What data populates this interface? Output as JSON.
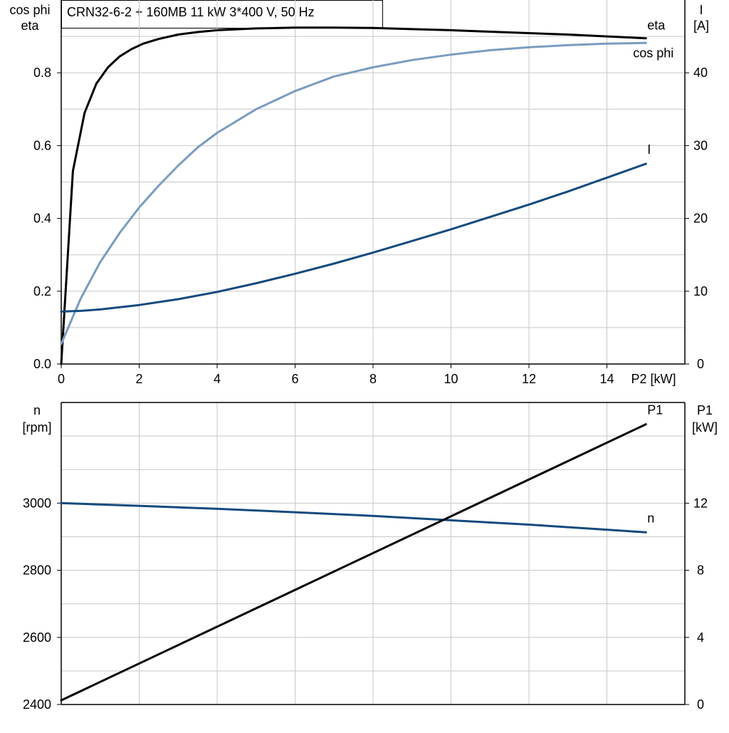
{
  "title": "CRN32-6-2 + 160MB   11 kW   3*400 V, 50 Hz",
  "colors": {
    "eta": "#000000",
    "cos_phi": "#7a9cbf",
    "current": "#144a7e",
    "speed": "#144a7e",
    "p1": "#000000",
    "grid": "#c8c8c8",
    "axis": "#000000"
  },
  "chart_data": [
    {
      "type": "line",
      "grid": true,
      "xlabel": "P2 [kW]",
      "xlim": [
        0,
        16
      ],
      "x_ticks": [
        0,
        2,
        4,
        6,
        8,
        10,
        12,
        14
      ],
      "x_tick_labels": [
        "0",
        "2",
        "4",
        "6",
        "8",
        "10",
        "12",
        "14"
      ],
      "y_left_label": [
        "cos phi",
        "eta"
      ],
      "ylim_left": [
        0,
        1.0
      ],
      "y_left_ticks": [
        0,
        0.2,
        0.4,
        0.6,
        0.8
      ],
      "y_left_tick_labels": [
        "0.0",
        "0.2",
        "0.4",
        "0.6",
        "0.8"
      ],
      "y_right_label": [
        "I",
        "[A]"
      ],
      "ylim_right": [
        0,
        50
      ],
      "y_right_ticks": [
        0,
        10,
        20,
        30,
        40
      ],
      "y_right_tick_labels": [
        "0",
        "10",
        "20",
        "30",
        "40"
      ],
      "series": [
        {
          "name": "eta",
          "axis": "left",
          "color": "#000000",
          "x": [
            0,
            0.3,
            0.6,
            0.9,
            1.2,
            1.5,
            1.8,
            2.1,
            2.5,
            3,
            3.5,
            4,
            5,
            6,
            7,
            8,
            9,
            10,
            11,
            12,
            13,
            14,
            15
          ],
          "y": [
            0.0,
            0.53,
            0.69,
            0.77,
            0.815,
            0.845,
            0.865,
            0.88,
            0.893,
            0.905,
            0.912,
            0.917,
            0.922,
            0.924,
            0.924,
            0.923,
            0.92,
            0.917,
            0.913,
            0.909,
            0.905,
            0.9,
            0.895
          ]
        },
        {
          "name": "cos phi",
          "axis": "left",
          "color": "#7a9cbf",
          "x": [
            0,
            0.5,
            1,
            1.5,
            2,
            2.5,
            3,
            3.5,
            4,
            5,
            6,
            7,
            8,
            9,
            10,
            11,
            12,
            13,
            14,
            15
          ],
          "y": [
            0.055,
            0.18,
            0.28,
            0.36,
            0.43,
            0.49,
            0.545,
            0.595,
            0.635,
            0.7,
            0.75,
            0.79,
            0.815,
            0.835,
            0.85,
            0.862,
            0.87,
            0.876,
            0.88,
            0.882
          ]
        },
        {
          "name": "I",
          "axis": "right",
          "color": "#144a7e",
          "x": [
            0,
            0.5,
            1,
            2,
            3,
            4,
            5,
            6,
            7,
            8,
            9,
            10,
            11,
            12,
            13,
            14,
            15
          ],
          "y": [
            7.2,
            7.3,
            7.5,
            8.1,
            8.9,
            9.9,
            11.1,
            12.4,
            13.8,
            15.3,
            16.9,
            18.5,
            20.2,
            21.9,
            23.7,
            25.6,
            27.5
          ]
        }
      ]
    },
    {
      "type": "line",
      "grid": true,
      "xlabel": "",
      "xlim": [
        0,
        16
      ],
      "y_left_label": [
        "n",
        "[rpm]"
      ],
      "ylim_left": [
        2400,
        3300
      ],
      "y_left_ticks": [
        2400,
        2600,
        2800,
        3000
      ],
      "y_left_tick_labels": [
        "2400",
        "2600",
        "2800",
        "3000"
      ],
      "y_right_label": [
        "P1",
        "[kW]"
      ],
      "ylim_right": [
        0,
        18
      ],
      "y_right_ticks": [
        0,
        4,
        8,
        12
      ],
      "y_right_tick_labels": [
        "0",
        "4",
        "8",
        "12"
      ],
      "series": [
        {
          "name": "n",
          "axis": "left",
          "color": "#144a7e",
          "x": [
            0,
            2,
            4,
            6,
            8,
            10,
            12,
            14,
            15
          ],
          "y": [
            3000,
            2992,
            2983,
            2973,
            2962,
            2949,
            2936,
            2921,
            2913
          ]
        },
        {
          "name": "P1",
          "axis": "right",
          "color": "#000000",
          "x": [
            0,
            15
          ],
          "y": [
            0.25,
            16.7
          ]
        }
      ]
    }
  ]
}
